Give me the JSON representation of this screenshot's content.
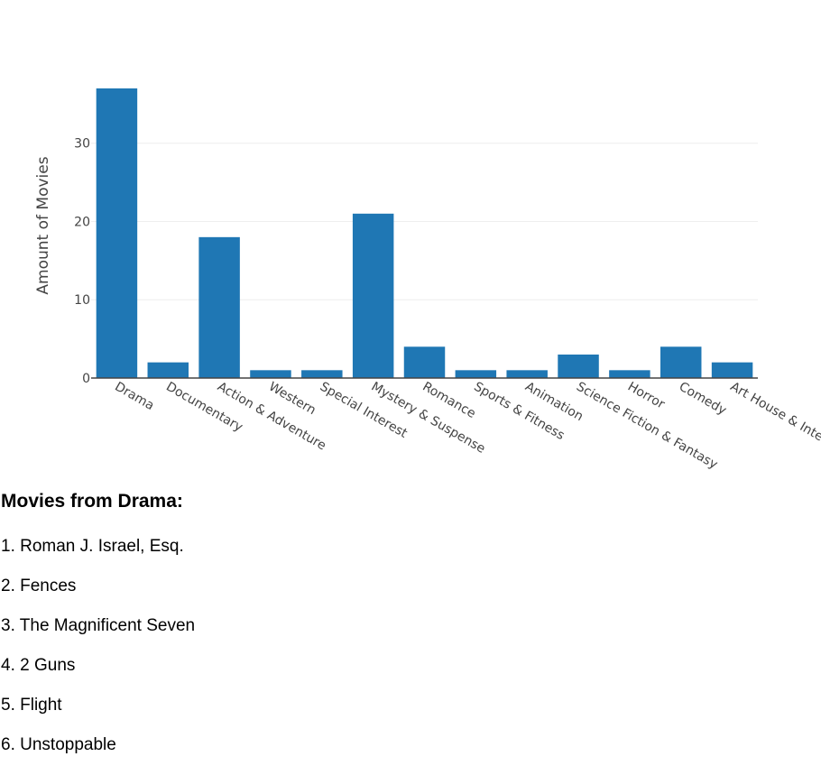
{
  "chart_data": {
    "type": "bar",
    "title": "",
    "xlabel": "",
    "ylabel": "Amount of Movies",
    "ylim": [
      0,
      37
    ],
    "yticks": [
      0,
      10,
      20,
      30
    ],
    "grid": true,
    "bar_color": "#1f77b4",
    "categories": [
      "Drama",
      "Documentary",
      "Action & Adventure",
      "Western",
      "Special Interest",
      "Mystery & Suspense",
      "Romance",
      "Sports & Fitness",
      "Animation",
      "Science Fiction & Fantasy",
      "Horror",
      "Comedy",
      "Art House & International"
    ],
    "values": [
      37,
      2,
      18,
      1,
      1,
      21,
      4,
      1,
      1,
      3,
      1,
      4,
      2
    ]
  },
  "details": {
    "heading": "Movies from Drama:",
    "movies": [
      "1. Roman J. Israel, Esq.",
      "2. Fences",
      "3. The Magnificent Seven",
      "4. 2 Guns",
      "5. Flight",
      "6. Unstoppable"
    ]
  }
}
